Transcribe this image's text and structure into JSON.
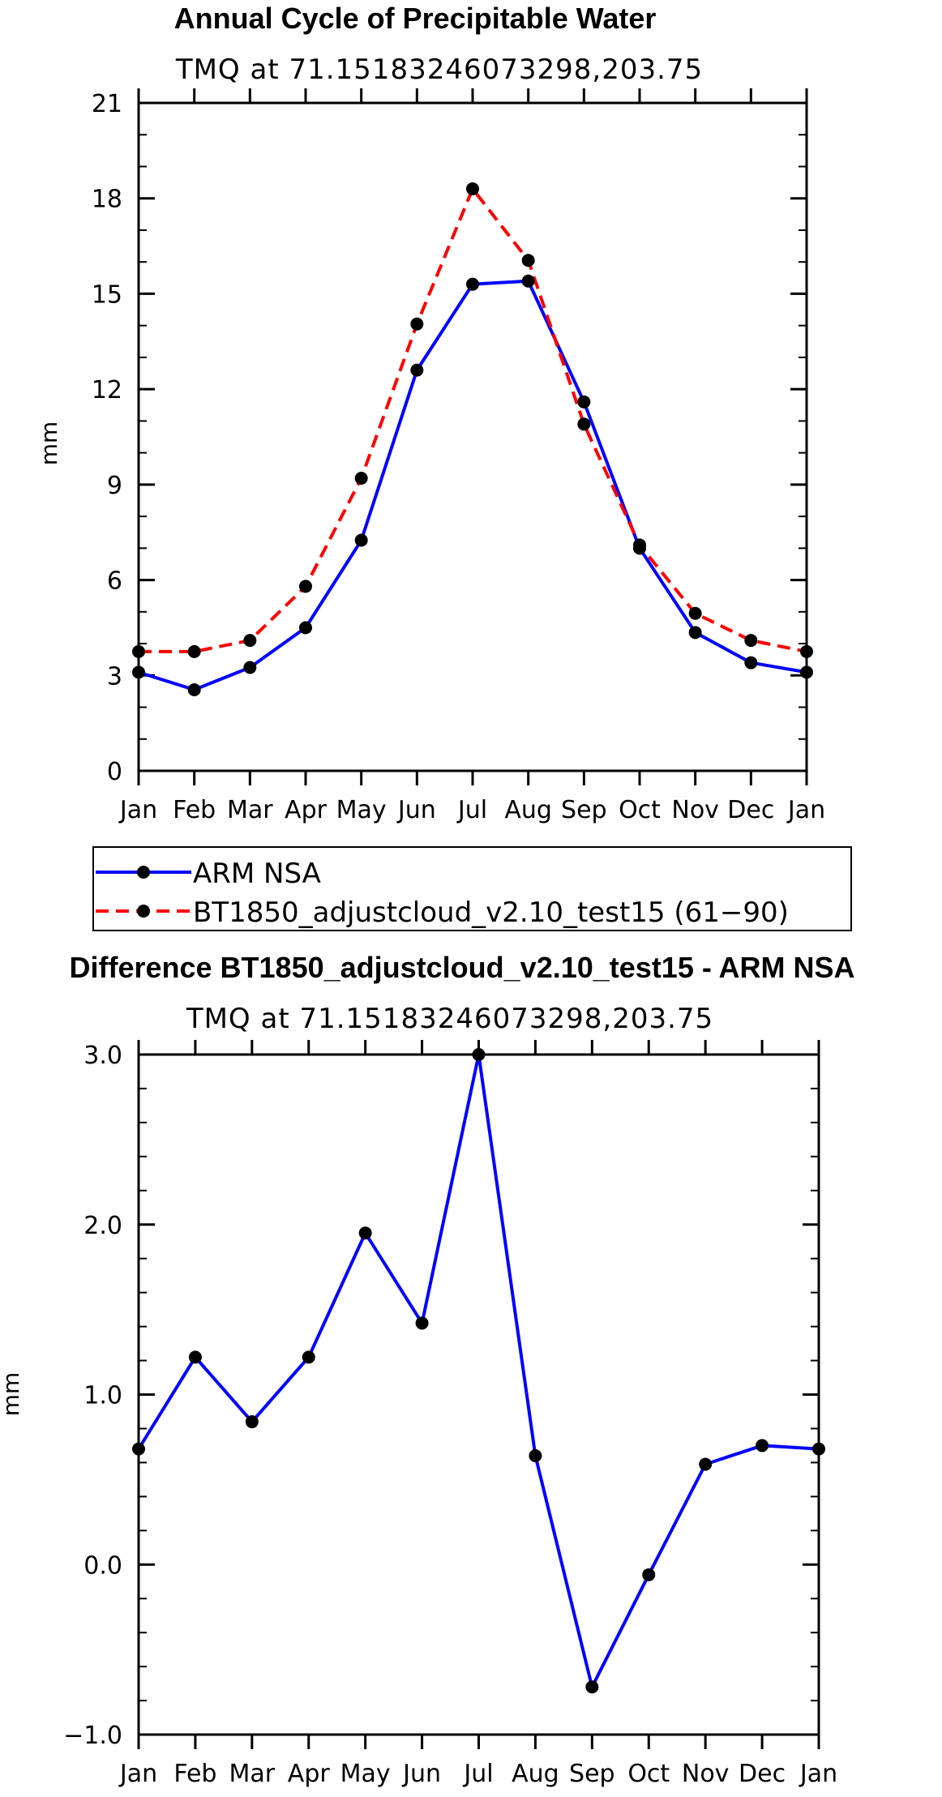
{
  "chart_data": [
    {
      "type": "line",
      "title": "Annual Cycle of Precipitable Water",
      "subtitle": "TMQ at 71.15183246073298,203.75",
      "xlabel": "",
      "ylabel": "mm",
      "categories": [
        "Jan",
        "Feb",
        "Mar",
        "Apr",
        "May",
        "Jun",
        "Jul",
        "Aug",
        "Sep",
        "Oct",
        "Nov",
        "Dec",
        "Jan"
      ],
      "ylim": [
        0,
        21
      ],
      "yticks": [
        "0",
        "3",
        "6",
        "9",
        "12",
        "15",
        "18",
        "21"
      ],
      "series": [
        {
          "name": "ARM NSA",
          "color": "#0000ff",
          "dash": "solid",
          "values": [
            3.1,
            2.55,
            3.25,
            4.5,
            7.25,
            12.6,
            15.3,
            15.4,
            11.6,
            7.0,
            4.35,
            3.4,
            3.1
          ]
        },
        {
          "name": "BT1850_adjustcloud_v2.10_test15 (61−90)",
          "color": "#ff0000",
          "dash": "dashed",
          "values": [
            3.75,
            3.75,
            4.1,
            5.8,
            9.2,
            14.05,
            18.3,
            16.05,
            10.9,
            7.1,
            4.95,
            4.1,
            3.75
          ]
        }
      ],
      "legend": [
        "ARM NSA",
        "BT1850_adjustcloud_v2.10_test15 (61−90)"
      ]
    },
    {
      "type": "line",
      "title": "Difference BT1850_adjustcloud_v2.10_test15 - ARM NSA",
      "subtitle": "TMQ at 71.15183246073298,203.75",
      "xlabel": "",
      "ylabel": "mm",
      "categories": [
        "Jan",
        "Feb",
        "Mar",
        "Apr",
        "May",
        "Jun",
        "Jul",
        "Aug",
        "Sep",
        "Oct",
        "Nov",
        "Dec",
        "Jan"
      ],
      "ylim": [
        -1.0,
        3.0
      ],
      "yticks": [
        "−1.0",
        "0.0",
        "1.0",
        "2.0",
        "3.0"
      ],
      "series": [
        {
          "name": "Difference",
          "color": "#0000ff",
          "dash": "solid",
          "values": [
            0.68,
            1.22,
            0.84,
            1.22,
            1.95,
            1.42,
            3.0,
            0.64,
            -0.72,
            -0.06,
            0.59,
            0.7,
            0.68
          ]
        }
      ]
    }
  ]
}
